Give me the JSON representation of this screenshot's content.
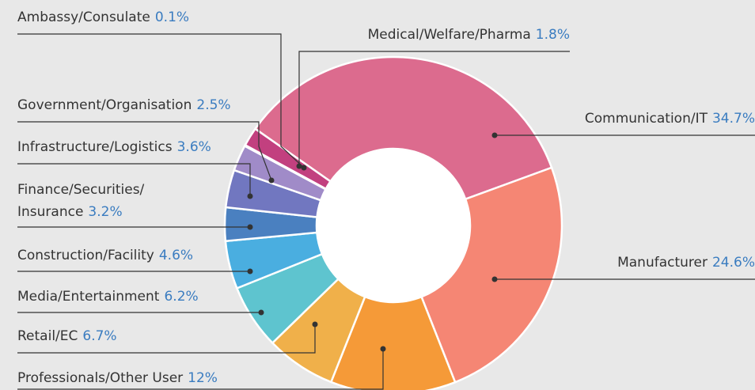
{
  "chart_data": {
    "type": "pie",
    "categories": [
      "Communication/IT",
      "Manufacturer",
      "Professionals/Other User",
      "Retail/EC",
      "Media/Entertainment",
      "Construction/Facility",
      "Finance/Securities/ Insurance",
      "Infrastructure/Logistics",
      "Government/Organisation",
      "Ambassy/Consulate",
      "Medical/Welfare/Pharma"
    ],
    "values": [
      34.7,
      24.6,
      12,
      6.7,
      6.2,
      4.6,
      3.2,
      3.6,
      2.5,
      0.1,
      1.8
    ],
    "value_labels": [
      "34.7%",
      "24.6%",
      "12%",
      "6.7%",
      "6.2%",
      "4.6%",
      "3.2%",
      "3.6%",
      "2.5%",
      "0.1%",
      "1.8%"
    ],
    "colors": [
      "#dc6b8e",
      "#f58674",
      "#f59a38",
      "#f0b04a",
      "#5ec4cf",
      "#4aaee0",
      "#4a80c0",
      "#7177c0",
      "#a08bc8",
      "#ffffff",
      "#c2407f"
    ]
  }
}
